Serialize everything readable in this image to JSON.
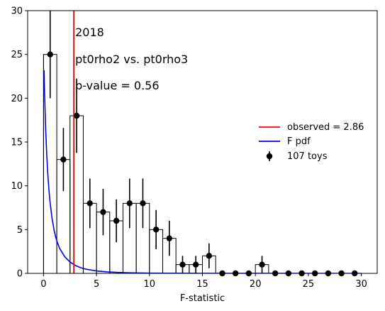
{
  "chart_data": {
    "type": "histogram",
    "xlabel": "F-statistic",
    "ylabel": "",
    "xlim": [
      -1.5,
      31.5
    ],
    "ylim": [
      0,
      30
    ],
    "x_ticks": [
      0,
      5,
      10,
      15,
      20,
      25,
      30
    ],
    "y_ticks": [
      0,
      5,
      10,
      15,
      20,
      25,
      30
    ],
    "annotations": [
      "2018",
      "pt0rho2 vs. pt0rho3",
      "p-value = 0.56"
    ],
    "bin_edges": [
      0,
      1.25,
      2.5,
      3.75,
      5,
      6.25,
      7.5,
      8.75,
      10,
      11.25,
      12.5,
      13.75,
      15,
      16.25,
      17.5,
      18.75,
      20,
      21.25,
      22.5,
      23.75,
      25,
      26.25,
      27.5,
      28.75,
      30
    ],
    "counts": [
      25,
      13,
      18,
      8,
      7,
      6,
      8,
      8,
      5,
      4,
      1,
      1,
      2,
      0,
      0,
      0,
      1,
      0,
      0,
      0,
      0,
      0,
      0,
      0
    ],
    "toys": {
      "name": "107 toys",
      "x": [
        0.625,
        1.875,
        3.125,
        4.375,
        5.625,
        6.875,
        8.125,
        9.375,
        10.625,
        11.875,
        13.125,
        14.375,
        15.625,
        16.875,
        18.125,
        19.375,
        20.625,
        21.875,
        23.125,
        24.375,
        25.625,
        26.875,
        28.125,
        29.375
      ],
      "y": [
        25,
        13,
        18,
        8,
        7,
        6,
        8,
        8,
        5,
        4,
        1,
        1,
        2,
        0,
        0,
        0,
        1,
        0,
        0,
        0,
        0,
        0,
        0,
        0
      ],
      "color": "#000000"
    },
    "observed": {
      "name": "observed = 2.86",
      "x": 2.86,
      "color": "#ff0000"
    },
    "f_pdf": {
      "name": "F pdf",
      "color": "#0000ff",
      "x": [
        0.05,
        0.1,
        0.2,
        0.3,
        0.4,
        0.5,
        0.6,
        0.8,
        1.0,
        1.2,
        1.5,
        2.0,
        2.5,
        3.0,
        3.5,
        4.0,
        5.0,
        6.0,
        7.0,
        8.0,
        10.0,
        12.0,
        15.0,
        20.0,
        30.0
      ],
      "y": [
        23.2,
        20.5,
        16.5,
        13.6,
        11.4,
        9.7,
        8.3,
        6.3,
        4.9,
        3.9,
        2.9,
        1.9,
        1.3,
        0.9,
        0.65,
        0.48,
        0.28,
        0.17,
        0.11,
        0.07,
        0.03,
        0.015,
        0.006,
        0.002,
        0.0003
      ]
    },
    "legend": {
      "position": "center-right",
      "entries": [
        "observed = 2.86",
        "F pdf",
        "107 toys"
      ]
    }
  }
}
